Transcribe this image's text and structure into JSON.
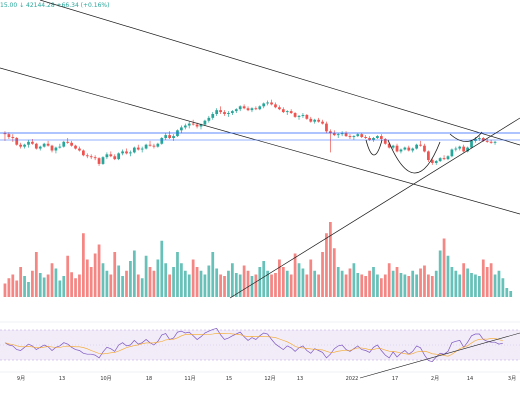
{
  "header": {
    "ohlc_text": "15.00 ↓ 42144.28 +66.34 (+0.16%)"
  },
  "chart_data": {
    "type": "candlestick",
    "colors": {
      "up": "#26a69a",
      "down": "#ef5350",
      "trendline": "#1a1a1a",
      "level": "#2962ff",
      "rsi_line": "#7e57c2",
      "rsi_ma": "#f5a623",
      "rsi_band": "#ede7f6"
    },
    "x_ticks": [
      "9月",
      "13",
      "10月",
      "18",
      "11月",
      "15",
      "12月",
      "13",
      "2022",
      "17",
      "2月",
      "14",
      "3月"
    ],
    "price_ohlc": [
      [
        0.4,
        0.41,
        0.36,
        0.395
      ],
      [
        0.395,
        0.405,
        0.37,
        0.38
      ],
      [
        0.38,
        0.395,
        0.355,
        0.375
      ],
      [
        0.375,
        0.38,
        0.335,
        0.34
      ],
      [
        0.34,
        0.35,
        0.32,
        0.33
      ],
      [
        0.33,
        0.345,
        0.32,
        0.34
      ],
      [
        0.34,
        0.365,
        0.325,
        0.355
      ],
      [
        0.355,
        0.37,
        0.34,
        0.345
      ],
      [
        0.345,
        0.35,
        0.315,
        0.32
      ],
      [
        0.32,
        0.335,
        0.31,
        0.33
      ],
      [
        0.33,
        0.35,
        0.325,
        0.345
      ],
      [
        0.345,
        0.36,
        0.33,
        0.335
      ],
      [
        0.335,
        0.34,
        0.3,
        0.31
      ],
      [
        0.31,
        0.33,
        0.295,
        0.325
      ],
      [
        0.325,
        0.345,
        0.32,
        0.33
      ],
      [
        0.33,
        0.36,
        0.325,
        0.355
      ],
      [
        0.355,
        0.375,
        0.345,
        0.35
      ],
      [
        0.35,
        0.36,
        0.33,
        0.335
      ],
      [
        0.335,
        0.34,
        0.315,
        0.32
      ],
      [
        0.32,
        0.33,
        0.305,
        0.31
      ],
      [
        0.31,
        0.315,
        0.28,
        0.285
      ],
      [
        0.285,
        0.295,
        0.27,
        0.28
      ],
      [
        0.28,
        0.29,
        0.265,
        0.275
      ],
      [
        0.275,
        0.285,
        0.26,
        0.27
      ],
      [
        0.27,
        0.275,
        0.23,
        0.24
      ],
      [
        0.24,
        0.28,
        0.235,
        0.275
      ],
      [
        0.275,
        0.3,
        0.265,
        0.29
      ],
      [
        0.29,
        0.305,
        0.275,
        0.28
      ],
      [
        0.28,
        0.29,
        0.26,
        0.265
      ],
      [
        0.265,
        0.3,
        0.26,
        0.295
      ],
      [
        0.295,
        0.315,
        0.285,
        0.305
      ],
      [
        0.305,
        0.32,
        0.29,
        0.295
      ],
      [
        0.295,
        0.31,
        0.28,
        0.3
      ],
      [
        0.3,
        0.33,
        0.295,
        0.325
      ],
      [
        0.325,
        0.34,
        0.31,
        0.315
      ],
      [
        0.315,
        0.33,
        0.3,
        0.32
      ],
      [
        0.32,
        0.345,
        0.315,
        0.34
      ],
      [
        0.34,
        0.36,
        0.33,
        0.335
      ],
      [
        0.335,
        0.345,
        0.32,
        0.33
      ],
      [
        0.33,
        0.35,
        0.325,
        0.345
      ],
      [
        0.345,
        0.38,
        0.34,
        0.375
      ],
      [
        0.375,
        0.4,
        0.365,
        0.39
      ],
      [
        0.39,
        0.41,
        0.37,
        0.375
      ],
      [
        0.375,
        0.395,
        0.36,
        0.385
      ],
      [
        0.385,
        0.42,
        0.38,
        0.415
      ],
      [
        0.415,
        0.44,
        0.4,
        0.43
      ],
      [
        0.43,
        0.45,
        0.42,
        0.44
      ],
      [
        0.44,
        0.46,
        0.425,
        0.45
      ],
      [
        0.45,
        0.47,
        0.44,
        0.445
      ],
      [
        0.445,
        0.455,
        0.425,
        0.435
      ],
      [
        0.435,
        0.45,
        0.42,
        0.445
      ],
      [
        0.445,
        0.47,
        0.44,
        0.465
      ],
      [
        0.465,
        0.49,
        0.455,
        0.48
      ],
      [
        0.48,
        0.51,
        0.47,
        0.5
      ],
      [
        0.5,
        0.53,
        0.49,
        0.52
      ],
      [
        0.52,
        0.54,
        0.5,
        0.51
      ],
      [
        0.51,
        0.52,
        0.49,
        0.5
      ],
      [
        0.5,
        0.515,
        0.485,
        0.505
      ],
      [
        0.505,
        0.52,
        0.495,
        0.515
      ],
      [
        0.515,
        0.53,
        0.505,
        0.525
      ],
      [
        0.525,
        0.545,
        0.515,
        0.54
      ],
      [
        0.54,
        0.55,
        0.525,
        0.53
      ],
      [
        0.53,
        0.54,
        0.515,
        0.52
      ],
      [
        0.52,
        0.535,
        0.51,
        0.53
      ],
      [
        0.53,
        0.54,
        0.52,
        0.525
      ],
      [
        0.525,
        0.545,
        0.52,
        0.54
      ],
      [
        0.54,
        0.56,
        0.53,
        0.555
      ],
      [
        0.555,
        0.57,
        0.545,
        0.56
      ],
      [
        0.56,
        0.575,
        0.545,
        0.55
      ],
      [
        0.55,
        0.56,
        0.53,
        0.535
      ],
      [
        0.535,
        0.545,
        0.52,
        0.525
      ],
      [
        0.525,
        0.535,
        0.505,
        0.51
      ],
      [
        0.51,
        0.52,
        0.495,
        0.515
      ],
      [
        0.515,
        0.525,
        0.5,
        0.505
      ],
      [
        0.505,
        0.51,
        0.48,
        0.485
      ],
      [
        0.485,
        0.495,
        0.47,
        0.49
      ],
      [
        0.49,
        0.505,
        0.48,
        0.495
      ],
      [
        0.495,
        0.5,
        0.47,
        0.475
      ],
      [
        0.475,
        0.485,
        0.455,
        0.46
      ],
      [
        0.46,
        0.475,
        0.45,
        0.47
      ],
      [
        0.47,
        0.48,
        0.455,
        0.46
      ],
      [
        0.46,
        0.47,
        0.445,
        0.45
      ],
      [
        0.45,
        0.46,
        0.4,
        0.41
      ],
      [
        0.41,
        0.42,
        0.3,
        0.4
      ],
      [
        0.4,
        0.415,
        0.385,
        0.39
      ],
      [
        0.39,
        0.4,
        0.375,
        0.395
      ],
      [
        0.395,
        0.41,
        0.385,
        0.4
      ],
      [
        0.4,
        0.41,
        0.38,
        0.385
      ],
      [
        0.385,
        0.395,
        0.37,
        0.38
      ],
      [
        0.38,
        0.39,
        0.365,
        0.385
      ],
      [
        0.385,
        0.4,
        0.38,
        0.395
      ],
      [
        0.395,
        0.4,
        0.375,
        0.38
      ],
      [
        0.38,
        0.39,
        0.37,
        0.375
      ],
      [
        0.375,
        0.385,
        0.36,
        0.365
      ],
      [
        0.365,
        0.38,
        0.355,
        0.375
      ],
      [
        0.375,
        0.39,
        0.37,
        0.385
      ],
      [
        0.385,
        0.395,
        0.365,
        0.37
      ],
      [
        0.37,
        0.375,
        0.34,
        0.345
      ],
      [
        0.345,
        0.355,
        0.32,
        0.325
      ],
      [
        0.325,
        0.34,
        0.315,
        0.335
      ],
      [
        0.335,
        0.345,
        0.3,
        0.305
      ],
      [
        0.305,
        0.32,
        0.295,
        0.315
      ],
      [
        0.315,
        0.33,
        0.31,
        0.325
      ],
      [
        0.325,
        0.335,
        0.305,
        0.31
      ],
      [
        0.31,
        0.325,
        0.3,
        0.32
      ],
      [
        0.32,
        0.345,
        0.315,
        0.34
      ],
      [
        0.34,
        0.36,
        0.33,
        0.335
      ],
      [
        0.335,
        0.345,
        0.3,
        0.305
      ],
      [
        0.305,
        0.31,
        0.25,
        0.26
      ],
      [
        0.26,
        0.27,
        0.235,
        0.245
      ],
      [
        0.245,
        0.26,
        0.235,
        0.255
      ],
      [
        0.255,
        0.275,
        0.25,
        0.27
      ],
      [
        0.27,
        0.285,
        0.26,
        0.265
      ],
      [
        0.265,
        0.285,
        0.26,
        0.28
      ],
      [
        0.28,
        0.32,
        0.275,
        0.315
      ],
      [
        0.315,
        0.33,
        0.305,
        0.32
      ],
      [
        0.32,
        0.335,
        0.31,
        0.33
      ],
      [
        0.33,
        0.34,
        0.3,
        0.305
      ],
      [
        0.305,
        0.33,
        0.3,
        0.325
      ],
      [
        0.325,
        0.365,
        0.32,
        0.36
      ],
      [
        0.36,
        0.38,
        0.35,
        0.37
      ],
      [
        0.37,
        0.385,
        0.36,
        0.375
      ],
      [
        0.375,
        0.38,
        0.355,
        0.36
      ],
      [
        0.36,
        0.37,
        0.35,
        0.355
      ],
      [
        0.355,
        0.365,
        0.345,
        0.35
      ],
      [
        0.35,
        0.36,
        0.34,
        0.355
      ]
    ],
    "volume": [
      0.18,
      0.25,
      0.3,
      0.22,
      0.4,
      0.28,
      0.2,
      0.35,
      0.6,
      0.32,
      0.26,
      0.3,
      0.45,
      0.38,
      0.22,
      0.28,
      0.55,
      0.33,
      0.25,
      0.3,
      0.85,
      0.5,
      0.4,
      0.58,
      0.7,
      0.45,
      0.35,
      0.3,
      0.6,
      0.42,
      0.28,
      0.35,
      0.48,
      0.62,
      0.3,
      0.25,
      0.55,
      0.4,
      0.35,
      0.5,
      0.75,
      0.45,
      0.3,
      0.4,
      0.6,
      0.45,
      0.35,
      0.3,
      0.5,
      0.4,
      0.35,
      0.3,
      0.42,
      0.6,
      0.38,
      0.3,
      0.28,
      0.35,
      0.45,
      0.32,
      0.3,
      0.42,
      0.35,
      0.28,
      0.3,
      0.4,
      0.48,
      0.35,
      0.3,
      0.32,
      0.5,
      0.4,
      0.35,
      0.3,
      0.58,
      0.45,
      0.38,
      0.3,
      0.5,
      0.35,
      0.3,
      0.6,
      0.85,
      1.0,
      0.65,
      0.4,
      0.35,
      0.3,
      0.38,
      0.45,
      0.32,
      0.3,
      0.28,
      0.35,
      0.4,
      0.3,
      0.25,
      0.3,
      0.45,
      0.35,
      0.4,
      0.32,
      0.3,
      0.28,
      0.35,
      0.3,
      0.38,
      0.42,
      0.3,
      0.28,
      0.35,
      0.62,
      0.78,
      0.55,
      0.4,
      0.35,
      0.3,
      0.45,
      0.38,
      0.32,
      0.3,
      0.28,
      0.5,
      0.4,
      0.45,
      0.3,
      0.35,
      0.25,
      0.12,
      0.08
    ],
    "rsi": [
      0.55,
      0.5,
      0.48,
      0.4,
      0.38,
      0.45,
      0.52,
      0.48,
      0.4,
      0.45,
      0.5,
      0.46,
      0.38,
      0.45,
      0.48,
      0.55,
      0.52,
      0.45,
      0.4,
      0.38,
      0.32,
      0.3,
      0.3,
      0.28,
      0.22,
      0.35,
      0.45,
      0.42,
      0.36,
      0.5,
      0.55,
      0.48,
      0.5,
      0.6,
      0.52,
      0.55,
      0.62,
      0.55,
      0.5,
      0.58,
      0.72,
      0.75,
      0.62,
      0.65,
      0.78,
      0.8,
      0.76,
      0.78,
      0.7,
      0.62,
      0.68,
      0.76,
      0.8,
      0.84,
      0.86,
      0.72,
      0.62,
      0.65,
      0.7,
      0.74,
      0.78,
      0.68,
      0.6,
      0.66,
      0.62,
      0.7,
      0.76,
      0.74,
      0.62,
      0.52,
      0.46,
      0.4,
      0.48,
      0.44,
      0.36,
      0.44,
      0.48,
      0.38,
      0.32,
      0.42,
      0.38,
      0.34,
      0.22,
      0.3,
      0.42,
      0.48,
      0.5,
      0.4,
      0.36,
      0.42,
      0.48,
      0.4,
      0.38,
      0.34,
      0.45,
      0.5,
      0.38,
      0.28,
      0.22,
      0.35,
      0.24,
      0.32,
      0.38,
      0.3,
      0.36,
      0.48,
      0.44,
      0.28,
      0.16,
      0.14,
      0.24,
      0.32,
      0.3,
      0.36,
      0.55,
      0.58,
      0.6,
      0.45,
      0.56,
      0.7,
      0.74,
      0.74,
      0.62,
      0.58,
      0.56,
      0.56,
      0.52,
      0.54
    ]
  }
}
